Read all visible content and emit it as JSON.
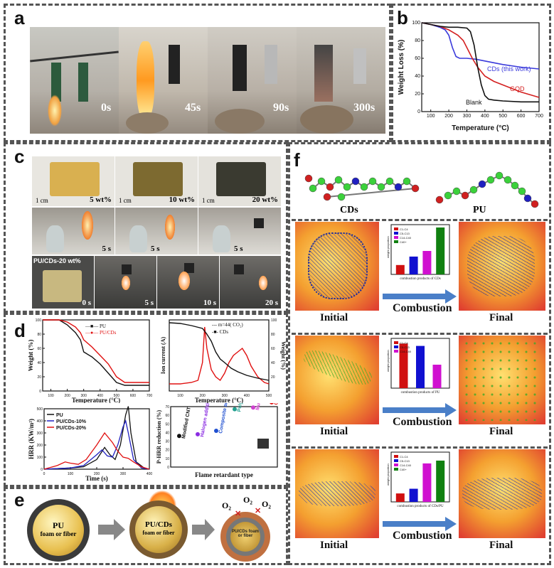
{
  "panel_a": {
    "label": "a",
    "times": [
      "0s",
      "45s",
      "90s",
      "300s"
    ]
  },
  "panel_b": {
    "label": "b",
    "chart_data": {
      "type": "line",
      "xlabel": "Temperature (°C)",
      "ylabel": "Weight Loss (%)",
      "xlim": [
        50,
        700
      ],
      "ylim": [
        0,
        100
      ],
      "xticks": [
        "100",
        "200",
        "300",
        "400",
        "500",
        "600",
        "700"
      ],
      "yticks": [
        "0",
        "20",
        "40",
        "60",
        "80",
        "100"
      ],
      "series": [
        {
          "name": "CDs (this work)",
          "color": "#3a3adb",
          "x": [
            50,
            100,
            150,
            180,
            200,
            220,
            240,
            260,
            300,
            350,
            400,
            450,
            500,
            600,
            700
          ],
          "y": [
            100,
            98,
            95,
            92,
            86,
            72,
            62,
            60,
            60,
            59,
            57,
            55,
            53,
            50,
            48
          ]
        },
        {
          "name": "GQD",
          "color": "#d42020",
          "x": [
            50,
            100,
            150,
            200,
            250,
            280,
            300,
            330,
            360,
            400,
            450,
            500,
            600,
            700
          ],
          "y": [
            100,
            98,
            96,
            92,
            86,
            80,
            72,
            60,
            50,
            40,
            34,
            30,
            22,
            16
          ]
        },
        {
          "name": "Blank",
          "color": "#111111",
          "x": [
            50,
            100,
            150,
            200,
            250,
            300,
            320,
            340,
            360,
            380,
            400,
            420,
            450,
            500,
            600,
            700
          ],
          "y": [
            100,
            98,
            96,
            95,
            95,
            94,
            90,
            75,
            50,
            30,
            18,
            14,
            13,
            12,
            11,
            11
          ]
        }
      ]
    }
  },
  "panel_c": {
    "label": "c",
    "scale": "1 cm",
    "loadings": [
      "5 wt%",
      "10 wt%",
      "20 wt%"
    ],
    "row2_times": [
      "5 s",
      "5 s",
      "5 s"
    ],
    "sample_label": "PU/CDs-20 wt%",
    "row3_times": [
      "0 s",
      "5 s",
      "10 s",
      "20 s"
    ]
  },
  "panel_d": {
    "label": "d",
    "tga": {
      "chart_data": {
        "type": "line",
        "xlabel": "Temperature (°C)",
        "ylabel": "Weight (%)",
        "xlim": [
          50,
          700
        ],
        "ylim": [
          0,
          100
        ],
        "xticks": [
          "100",
          "200",
          "300",
          "400",
          "500",
          "600",
          "700"
        ],
        "yticks": [
          "0",
          "20",
          "40",
          "60",
          "80",
          "100"
        ],
        "series": [
          {
            "name": "PU",
            "color": "#111111",
            "x": [
              50,
              150,
              200,
              250,
              280,
              300,
              350,
              400,
              450,
              500,
              550,
              600,
              700
            ],
            "y": [
              100,
              100,
              93,
              82,
              72,
              55,
              48,
              38,
              25,
              12,
              8,
              8,
              8
            ]
          },
          {
            "name": "PU/CDs",
            "color": "#e01010",
            "x": [
              50,
              150,
              200,
              250,
              280,
              300,
              350,
              400,
              450,
              500,
              550,
              600,
              700
            ],
            "y": [
              100,
              100,
              97,
              90,
              82,
              72,
              62,
              50,
              38,
              20,
              12,
              12,
              12
            ]
          }
        ]
      }
    },
    "ms": {
      "chart_data": {
        "type": "line",
        "xlabel": "Temperature (°C)",
        "ylabel": "Ion current (A)",
        "ylabel_right": "Weight (%)",
        "xlim": [
          50,
          500
        ],
        "xticks": [
          "100",
          "200",
          "300",
          "400",
          "500"
        ],
        "yticks_right": [
          "20",
          "40",
          "60",
          "80",
          "100"
        ],
        "series": [
          {
            "name": "m=44( CO₂)",
            "color": "#e01010",
            "x": [
              50,
              100,
              150,
              180,
              200,
              210,
              220,
              240,
              260,
              280,
              300,
              320,
              340,
              360,
              380,
              400,
              420,
              450,
              480,
              500
            ],
            "y": [
              10,
              10,
              12,
              15,
              40,
              90,
              60,
              30,
              20,
              15,
              25,
              40,
              50,
              55,
              60,
              50,
              35,
              20,
              12,
              10
            ]
          },
          {
            "name": "CDs",
            "color": "#111111",
            "x": [
              50,
              100,
              150,
              200,
              220,
              240,
              260,
              280,
              300,
              330,
              360,
              400,
              450,
              500
            ],
            "y": [
              96,
              95,
              92,
              88,
              80,
              70,
              55,
              45,
              40,
              32,
              27,
              22,
              18,
              15
            ]
          }
        ]
      }
    },
    "hrr": {
      "chart_data": {
        "type": "line",
        "xlabel": "Time (s)",
        "ylabel": "HRR (KW/m²)",
        "xlim": [
          0,
          400
        ],
        "ylim": [
          0,
          500
        ],
        "xticks": [
          "0",
          "100",
          "200",
          "300",
          "400"
        ],
        "yticks": [
          "0",
          "100",
          "200",
          "300",
          "400",
          "500"
        ],
        "series": [
          {
            "name": "PU",
            "color": "#111111",
            "x": [
              0,
              50,
              100,
              150,
              200,
              230,
              250,
              270,
              290,
              310,
              320,
              330,
              350,
              380,
              400
            ],
            "y": [
              0,
              5,
              10,
              20,
              80,
              180,
              120,
              80,
              200,
              450,
              520,
              300,
              60,
              10,
              0
            ]
          },
          {
            "name": "PU/CDs-10%",
            "color": "#2020c0",
            "x": [
              0,
              50,
              100,
              150,
              200,
              220,
              240,
              260,
              280,
              300,
              310,
              320,
              340,
              370,
              400
            ],
            "y": [
              0,
              5,
              10,
              30,
              120,
              160,
              110,
              100,
              200,
              350,
              400,
              300,
              80,
              10,
              0
            ]
          },
          {
            "name": "PU/CDs-20%",
            "color": "#e01010",
            "x": [
              0,
              50,
              80,
              100,
              130,
              160,
              200,
              230,
              260,
              280,
              300,
              320,
              340,
              370,
              400
            ],
            "y": [
              0,
              30,
              60,
              50,
              40,
              80,
              200,
              300,
              220,
              150,
              100,
              90,
              60,
              20,
              0
            ]
          }
        ]
      }
    },
    "phrr": {
      "chart_data": {
        "type": "scatter",
        "xlabel": "Flame retardant type",
        "ylabel": "P-HRR reduction (%)",
        "ylim": [
          0,
          70
        ],
        "yticks": [
          "0",
          "10",
          "20",
          "30",
          "40",
          "50",
          "60",
          "70"
        ],
        "categories": [
          "Modified CNT",
          "Halogen additive",
          "Composite additive",
          "Polydopamine",
          "Multi-layered MWCNT",
          "CDs"
        ],
        "values": [
          36,
          38,
          42,
          67,
          69,
          75
        ],
        "colors": [
          "#111111",
          "#8a2be2",
          "#1f4fd0",
          "#22a090",
          "#d040d0",
          "#e01010"
        ]
      }
    }
  },
  "panel_e": {
    "label": "e",
    "pu_label": "PU",
    "pu_sub": "foam or fiber",
    "pucds_label": "PU/CDs",
    "pucds_sub": "foam or fiber",
    "o2": "O₂",
    "inner_small": "PU/CDs foam or fiber"
  },
  "panel_f": {
    "label": "f",
    "mol_labels": [
      "CDs",
      "PU"
    ],
    "combustion_label": "Combustion",
    "initial_label": "Initial",
    "final_label": "Final",
    "rows": [
      {
        "caption": "combustion products of CDs",
        "legend": [
          "C1-C4",
          "C5-C13",
          "C14-C40",
          "C40+"
        ],
        "colors": [
          "#d01010",
          "#1010d0",
          "#d010d0",
          "#108010"
        ],
        "values": [
          0.2,
          0.38,
          0.5,
          1.0
        ]
      },
      {
        "caption": "combustion products of PU",
        "legend": [
          "C1-C4",
          "C5-C13",
          "C14-C40"
        ],
        "colors": [
          "#d01010",
          "#1010d0",
          "#d010d0"
        ],
        "values": [
          0.95,
          0.9,
          0.5
        ]
      },
      {
        "caption": "combustion products of CDs/PU",
        "legend": [
          "C1-C4",
          "C5-C13",
          "C14-C40",
          "C40+"
        ],
        "colors": [
          "#d01010",
          "#1010d0",
          "#d010d0",
          "#108010"
        ],
        "values": [
          0.18,
          0.28,
          0.82,
          0.88
        ]
      }
    ]
  }
}
